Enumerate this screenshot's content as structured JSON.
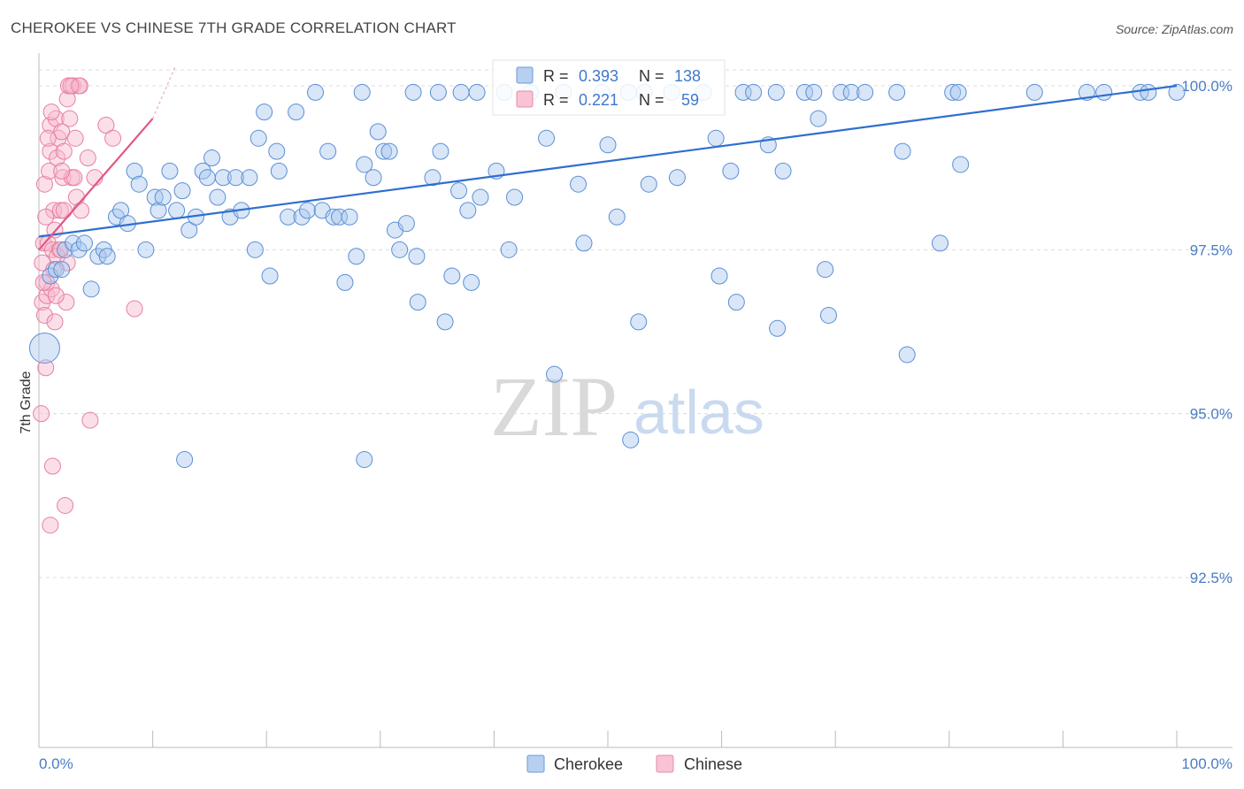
{
  "header": {
    "title": "CHEROKEE VS CHINESE 7TH GRADE CORRELATION CHART",
    "source": "Source: ZipAtlas.com"
  },
  "watermark": {
    "zip": "ZIP",
    "atlas": "atlas"
  },
  "legend": {
    "r_label": "R =",
    "n_label": "N =",
    "rows": [
      {
        "name": "Cherokee",
        "r": "0.393",
        "n": "138",
        "fill": "#b8d0f0",
        "stroke": "#6a9ad8"
      },
      {
        "name": "Chinese",
        "r": "0.221",
        "n": "59",
        "fill": "#f9c3d5",
        "stroke": "#e88aaa"
      }
    ]
  },
  "chart_data": {
    "type": "scatter",
    "ylabel": "7th Grade",
    "xlim": [
      0,
      100
    ],
    "ylim": [
      90.0,
      100.5
    ],
    "x_ticks": [
      "0.0%",
      "100.0%"
    ],
    "y_ticks": [
      {
        "value": 100.0,
        "label": "100.0%"
      },
      {
        "value": 97.5,
        "label": "97.5%"
      },
      {
        "value": 95.0,
        "label": "95.0%"
      },
      {
        "value": 92.5,
        "label": "92.5%"
      }
    ],
    "colors": {
      "cherokee_fill": "#a9c7ee",
      "cherokee_stroke": "#5b8fd6",
      "cherokee_line": "#2f6fcf",
      "chinese_fill": "#f7b7cc",
      "chinese_stroke": "#e87ea3",
      "chinese_line": "#e0568a"
    },
    "series": [
      {
        "name": "Cherokee",
        "trend": {
          "x": [
            0,
            100
          ],
          "y": [
            97.7,
            100.0
          ]
        },
        "points": [
          [
            0.5,
            96.0,
            3
          ],
          [
            1,
            97.1,
            1
          ],
          [
            1.5,
            97.2,
            1
          ],
          [
            2,
            97.2,
            1
          ],
          [
            2.3,
            97.5,
            1
          ],
          [
            3,
            97.6,
            1
          ],
          [
            3.5,
            97.5,
            1
          ],
          [
            4,
            97.6,
            1
          ],
          [
            4.6,
            96.9,
            1
          ],
          [
            5.2,
            97.4,
            1
          ],
          [
            5.7,
            97.5,
            1
          ],
          [
            6,
            97.4,
            1
          ],
          [
            6.8,
            98.0,
            1
          ],
          [
            7.2,
            98.1,
            1
          ],
          [
            7.8,
            97.9,
            1
          ],
          [
            8.4,
            98.7,
            1
          ],
          [
            8.8,
            98.5,
            1
          ],
          [
            9.4,
            97.5,
            1
          ],
          [
            10.2,
            98.3,
            1
          ],
          [
            10.5,
            98.1,
            1
          ],
          [
            10.9,
            98.3,
            1
          ],
          [
            11.5,
            98.7,
            1
          ],
          [
            12.1,
            98.1,
            1
          ],
          [
            12.6,
            98.4,
            1
          ],
          [
            13.2,
            97.8,
            1
          ],
          [
            13.8,
            98.0,
            1
          ],
          [
            14.4,
            98.7,
            1
          ],
          [
            14.8,
            98.6,
            1
          ],
          [
            15.2,
            98.9,
            1
          ],
          [
            15.7,
            98.3,
            1
          ],
          [
            16.2,
            98.6,
            1
          ],
          [
            16.8,
            98.0,
            1
          ],
          [
            17.3,
            98.6,
            1
          ],
          [
            17.8,
            98.1,
            1
          ],
          [
            18.5,
            98.6,
            1
          ],
          [
            19.0,
            97.5,
            1
          ],
          [
            19.3,
            99.2,
            1
          ],
          [
            19.8,
            99.6,
            1
          ],
          [
            20.3,
            97.1,
            1
          ],
          [
            20.9,
            99.0,
            1
          ],
          [
            21.1,
            98.7,
            1
          ],
          [
            21.9,
            98.0,
            1
          ],
          [
            22.6,
            99.6,
            1
          ],
          [
            23.1,
            98.0,
            1
          ],
          [
            23.6,
            98.1,
            1
          ],
          [
            24.3,
            99.9,
            1
          ],
          [
            24.9,
            98.1,
            1
          ],
          [
            25.4,
            99.0,
            1
          ],
          [
            25.9,
            98.0,
            1
          ],
          [
            26.4,
            98.0,
            1
          ],
          [
            26.9,
            97.0,
            1
          ],
          [
            27.3,
            98.0,
            1
          ],
          [
            27.9,
            97.4,
            1
          ],
          [
            28.4,
            99.9,
            1
          ],
          [
            28.6,
            98.8,
            1
          ],
          [
            29.4,
            98.6,
            1
          ],
          [
            29.8,
            99.3,
            1
          ],
          [
            30.3,
            99.0,
            1
          ],
          [
            30.8,
            99.0,
            1
          ],
          [
            31.3,
            97.8,
            1
          ],
          [
            31.7,
            97.5,
            1
          ],
          [
            32.3,
            97.9,
            1
          ],
          [
            32.9,
            99.9,
            1
          ],
          [
            33.2,
            97.4,
            1
          ],
          [
            33.3,
            96.7,
            1
          ],
          [
            34.6,
            98.6,
            1
          ],
          [
            35.1,
            99.9,
            1
          ],
          [
            35.3,
            99.0,
            1
          ],
          [
            35.7,
            96.4,
            1
          ],
          [
            36.3,
            97.1,
            1
          ],
          [
            36.9,
            98.4,
            1
          ],
          [
            37.1,
            99.9,
            1
          ],
          [
            37.7,
            98.1,
            1
          ],
          [
            38.0,
            97.0,
            1
          ],
          [
            38.5,
            99.9,
            1
          ],
          [
            38.8,
            98.3,
            1
          ],
          [
            40.2,
            98.7,
            1
          ],
          [
            40.9,
            99.9,
            1
          ],
          [
            41.3,
            97.5,
            1
          ],
          [
            41.8,
            98.3,
            1
          ],
          [
            43.2,
            99.9,
            1
          ],
          [
            44.6,
            99.2,
            1
          ],
          [
            45.3,
            95.6,
            1
          ],
          [
            46.1,
            99.9,
            1
          ],
          [
            47.4,
            98.5,
            1
          ],
          [
            47.9,
            97.6,
            1
          ],
          [
            49.5,
            99.9,
            1
          ],
          [
            50.0,
            99.1,
            1
          ],
          [
            50.8,
            98.0,
            1
          ],
          [
            51.8,
            99.9,
            1
          ],
          [
            52.0,
            94.6,
            1
          ],
          [
            52.7,
            96.4,
            1
          ],
          [
            53.2,
            99.9,
            1
          ],
          [
            53.6,
            98.5,
            1
          ],
          [
            55.6,
            99.9,
            1
          ],
          [
            56.1,
            98.6,
            1
          ],
          [
            58.4,
            99.9,
            1
          ],
          [
            59.5,
            99.2,
            1
          ],
          [
            59.8,
            97.1,
            1
          ],
          [
            60.8,
            98.7,
            1
          ],
          [
            61.3,
            96.7,
            1
          ],
          [
            61.9,
            99.9,
            1
          ],
          [
            62.8,
            99.9,
            1
          ],
          [
            64.1,
            99.1,
            1
          ],
          [
            64.8,
            99.9,
            1
          ],
          [
            64.9,
            96.3,
            1
          ],
          [
            65.4,
            98.7,
            1
          ],
          [
            67.3,
            99.9,
            1
          ],
          [
            68.1,
            99.9,
            1
          ],
          [
            68.5,
            99.5,
            1
          ],
          [
            69.1,
            97.2,
            1
          ],
          [
            69.4,
            96.5,
            1
          ],
          [
            70.5,
            99.9,
            1
          ],
          [
            71.4,
            99.9,
            1
          ],
          [
            72.6,
            99.9,
            1
          ],
          [
            75.4,
            99.9,
            1
          ],
          [
            75.9,
            99.0,
            1
          ],
          [
            76.3,
            95.9,
            1
          ],
          [
            79.2,
            97.6,
            1
          ],
          [
            80.3,
            99.9,
            1
          ],
          [
            80.8,
            99.9,
            1
          ],
          [
            81.0,
            98.8,
            1
          ],
          [
            87.5,
            99.9,
            1
          ],
          [
            92.1,
            99.9,
            1
          ],
          [
            93.6,
            99.9,
            1
          ],
          [
            96.8,
            99.9,
            1
          ],
          [
            97.5,
            99.9,
            1
          ],
          [
            100,
            99.9,
            1
          ],
          [
            12.8,
            94.3,
            1
          ],
          [
            28.6,
            94.3,
            1
          ]
        ]
      },
      {
        "name": "Chinese",
        "trend": {
          "x": [
            0,
            10
          ],
          "y": [
            97.5,
            99.5
          ]
        },
        "trend_extension": {
          "x": [
            10,
            12
          ],
          "y": [
            99.5,
            100.3
          ]
        },
        "points": [
          [
            0.3,
            96.7,
            1
          ],
          [
            0.3,
            97.3,
            1
          ],
          [
            0.4,
            97.6,
            1
          ],
          [
            0.5,
            96.5,
            1
          ],
          [
            0.5,
            98.5,
            1
          ],
          [
            0.6,
            95.7,
            1
          ],
          [
            0.7,
            96.8,
            1
          ],
          [
            0.7,
            97.0,
            1
          ],
          [
            0.8,
            97.6,
            1
          ],
          [
            0.9,
            98.7,
            1
          ],
          [
            1.0,
            99.4,
            1
          ],
          [
            1.0,
            99.0,
            1
          ],
          [
            1.1,
            96.9,
            1
          ],
          [
            1.2,
            97.5,
            1
          ],
          [
            1.3,
            98.1,
            1
          ],
          [
            1.3,
            97.2,
            1
          ],
          [
            1.4,
            96.4,
            1
          ],
          [
            1.4,
            97.8,
            1
          ],
          [
            1.5,
            99.5,
            1
          ],
          [
            1.6,
            98.9,
            1
          ],
          [
            1.7,
            99.2,
            1
          ],
          [
            1.8,
            97.5,
            1
          ],
          [
            1.9,
            98.1,
            1
          ],
          [
            2.0,
            99.3,
            1
          ],
          [
            2.1,
            98.6,
            1
          ],
          [
            2.2,
            99.0,
            1
          ],
          [
            2.2,
            98.1,
            1
          ],
          [
            2.4,
            96.7,
            1
          ],
          [
            2.5,
            99.8,
            1
          ],
          [
            2.6,
            100.0,
            1
          ],
          [
            2.7,
            99.5,
            1
          ],
          [
            2.9,
            98.6,
            1
          ],
          [
            3.0,
            100.0,
            1
          ],
          [
            3.1,
            98.6,
            1
          ],
          [
            3.3,
            98.3,
            1
          ],
          [
            3.5,
            100.0,
            1
          ],
          [
            3.6,
            100.0,
            1
          ],
          [
            3.7,
            98.1,
            1
          ],
          [
            4.3,
            98.9,
            1
          ],
          [
            4.5,
            94.9,
            1
          ],
          [
            4.9,
            98.6,
            1
          ],
          [
            5.9,
            99.4,
            1
          ],
          [
            6.5,
            99.2,
            1
          ],
          [
            8.4,
            96.6,
            1
          ],
          [
            1.0,
            93.3,
            1
          ],
          [
            1.2,
            94.2,
            1
          ],
          [
            2.3,
            93.6,
            1
          ],
          [
            0.2,
            95.0,
            1
          ],
          [
            0.6,
            98.0,
            1
          ],
          [
            0.8,
            99.2,
            1
          ],
          [
            1.6,
            97.4,
            1
          ],
          [
            2.0,
            98.7,
            1
          ],
          [
            1.1,
            99.6,
            1
          ],
          [
            2.8,
            100.0,
            1
          ],
          [
            0.4,
            97.0,
            1
          ],
          [
            1.5,
            96.8,
            1
          ],
          [
            3.2,
            99.2,
            1
          ],
          [
            1.9,
            97.5,
            1
          ],
          [
            2.5,
            97.3,
            1
          ]
        ]
      }
    ]
  }
}
